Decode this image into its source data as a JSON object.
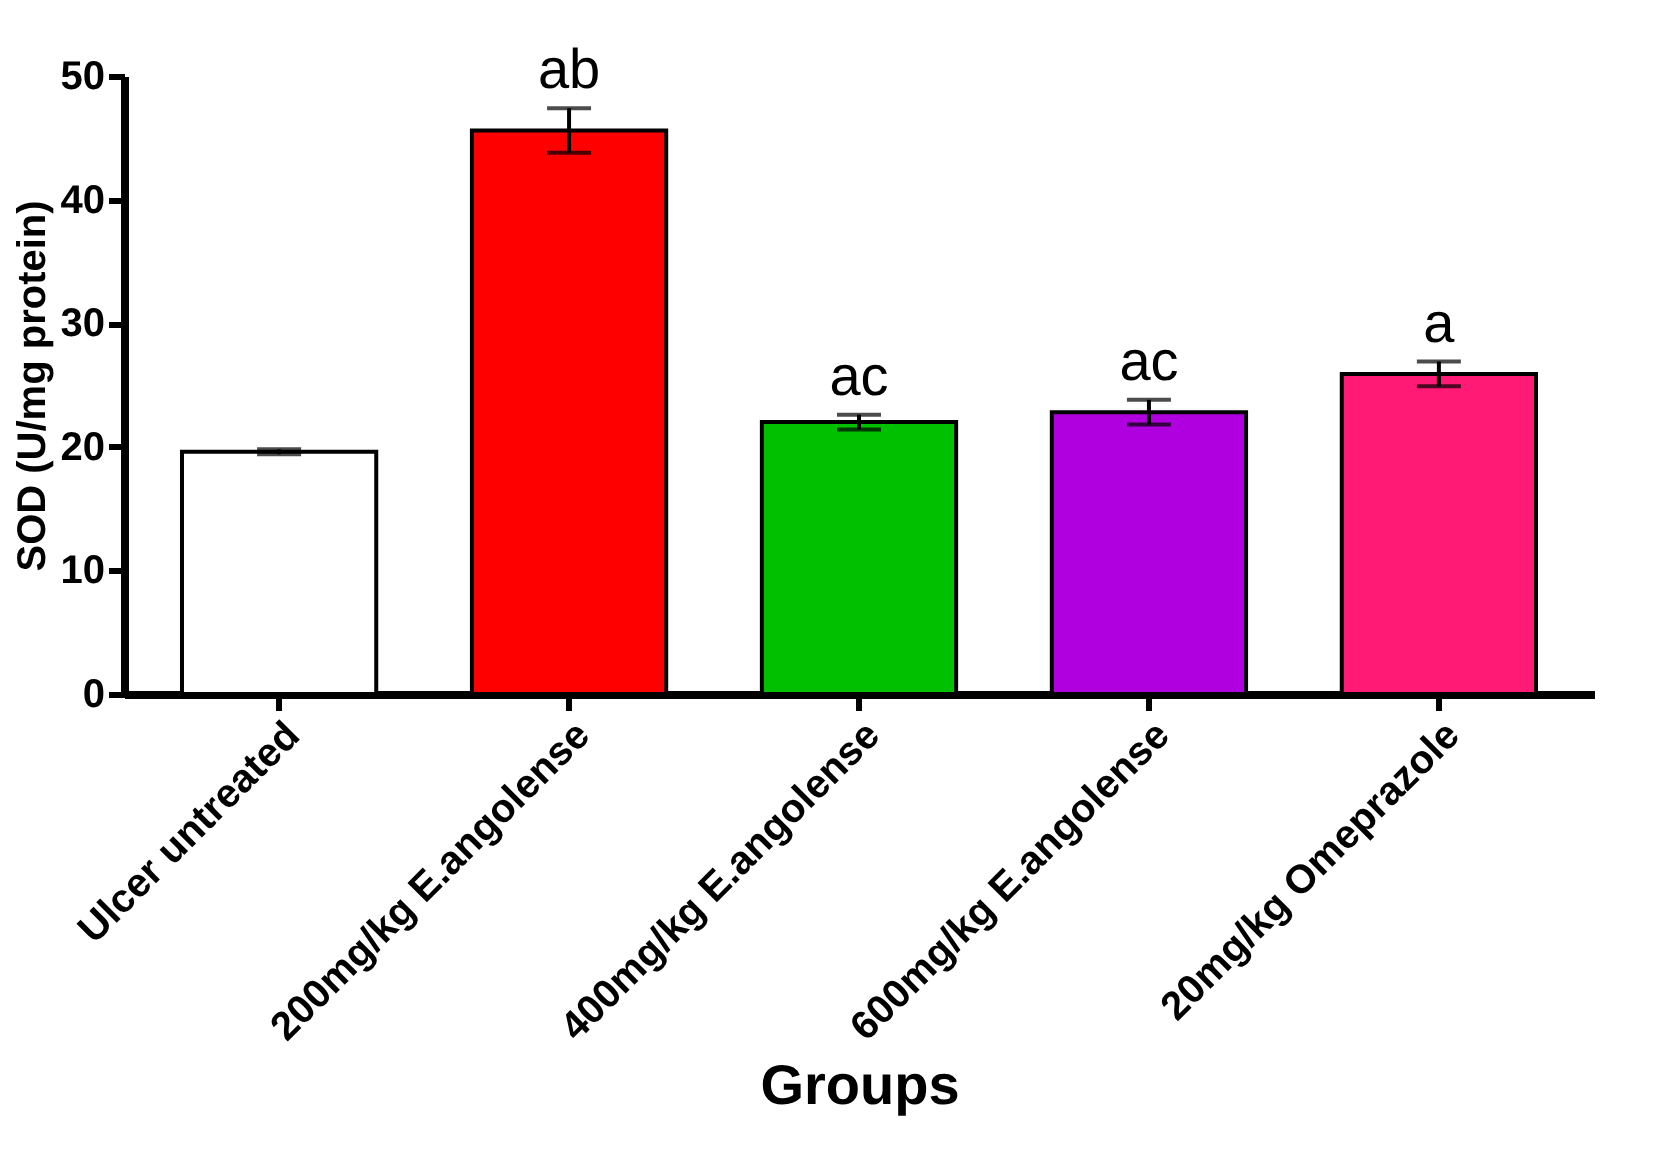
{
  "chart_data": {
    "type": "bar",
    "xlabel": "Groups",
    "ylabel": "SOD (U/mg protein)",
    "categories": [
      "Ulcer untreated",
      "200mg/kg E.angolense",
      "400mg/kg E.angolense",
      "600mg/kg E.angolense",
      "20mg/kg Omeprazole"
    ],
    "values": [
      19.6,
      45.6,
      22.0,
      22.8,
      25.9
    ],
    "errors": [
      0.2,
      1.8,
      0.6,
      1.0,
      1.0
    ],
    "colors": [
      "#ffffff",
      "#ff0000",
      "#00c000",
      "#b000e0",
      "#ff1a75"
    ],
    "ylim": [
      0,
      50
    ],
    "yticks": [
      0,
      10,
      20,
      30,
      40,
      50
    ],
    "grid": false,
    "annotations": [
      {
        "text": "ab",
        "x": "200mg/kg E.angolense",
        "y": 47.4
      },
      {
        "text": "ac",
        "x": "400mg/kg E.angolense",
        "y": 22.6
      },
      {
        "text": "ac",
        "x": "600mg/kg E.angolense",
        "y": 23.8
      },
      {
        "text": "a",
        "x": "20mg/kg Omeprazole",
        "y": 26.9
      }
    ]
  }
}
